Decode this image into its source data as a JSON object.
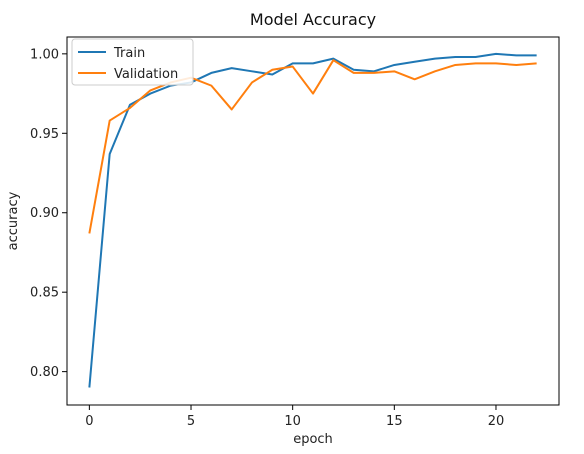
{
  "chart_data": {
    "type": "line",
    "title": "Model Accuracy",
    "xlabel": "epoch",
    "ylabel": "accuracy",
    "xlim": [
      -1.1,
      23.1
    ],
    "ylim": [
      0.779,
      1.0106
    ],
    "x_ticks": [
      0,
      5,
      10,
      15,
      20
    ],
    "x_tick_labels": [
      "0",
      "5",
      "10",
      "15",
      "20"
    ],
    "y_ticks": [
      0.8,
      0.85,
      0.9,
      0.95,
      1.0
    ],
    "y_tick_labels": [
      "0.80",
      "0.85",
      "0.90",
      "0.95",
      "1.00"
    ],
    "grid": false,
    "legend_position": "top-left",
    "x": [
      0,
      1,
      2,
      3,
      4,
      5,
      6,
      7,
      8,
      9,
      10,
      11,
      12,
      13,
      14,
      15,
      16,
      17,
      18,
      19,
      20,
      21,
      22
    ],
    "series": [
      {
        "name": "Train",
        "color": "#1f77b4",
        "values": [
          0.79,
          0.937,
          0.968,
          0.975,
          0.98,
          0.982,
          0.988,
          0.991,
          0.989,
          0.987,
          0.994,
          0.994,
          0.997,
          0.99,
          0.989,
          0.993,
          0.995,
          0.997,
          0.998,
          0.998,
          1.0,
          0.999,
          0.999
        ]
      },
      {
        "name": "Validation",
        "color": "#ff7f0e",
        "values": [
          0.887,
          0.958,
          0.966,
          0.977,
          0.982,
          0.985,
          0.98,
          0.965,
          0.982,
          0.99,
          0.992,
          0.975,
          0.996,
          0.988,
          0.988,
          0.989,
          0.984,
          0.989,
          0.993,
          0.994,
          0.994,
          0.993,
          0.994
        ]
      }
    ]
  }
}
